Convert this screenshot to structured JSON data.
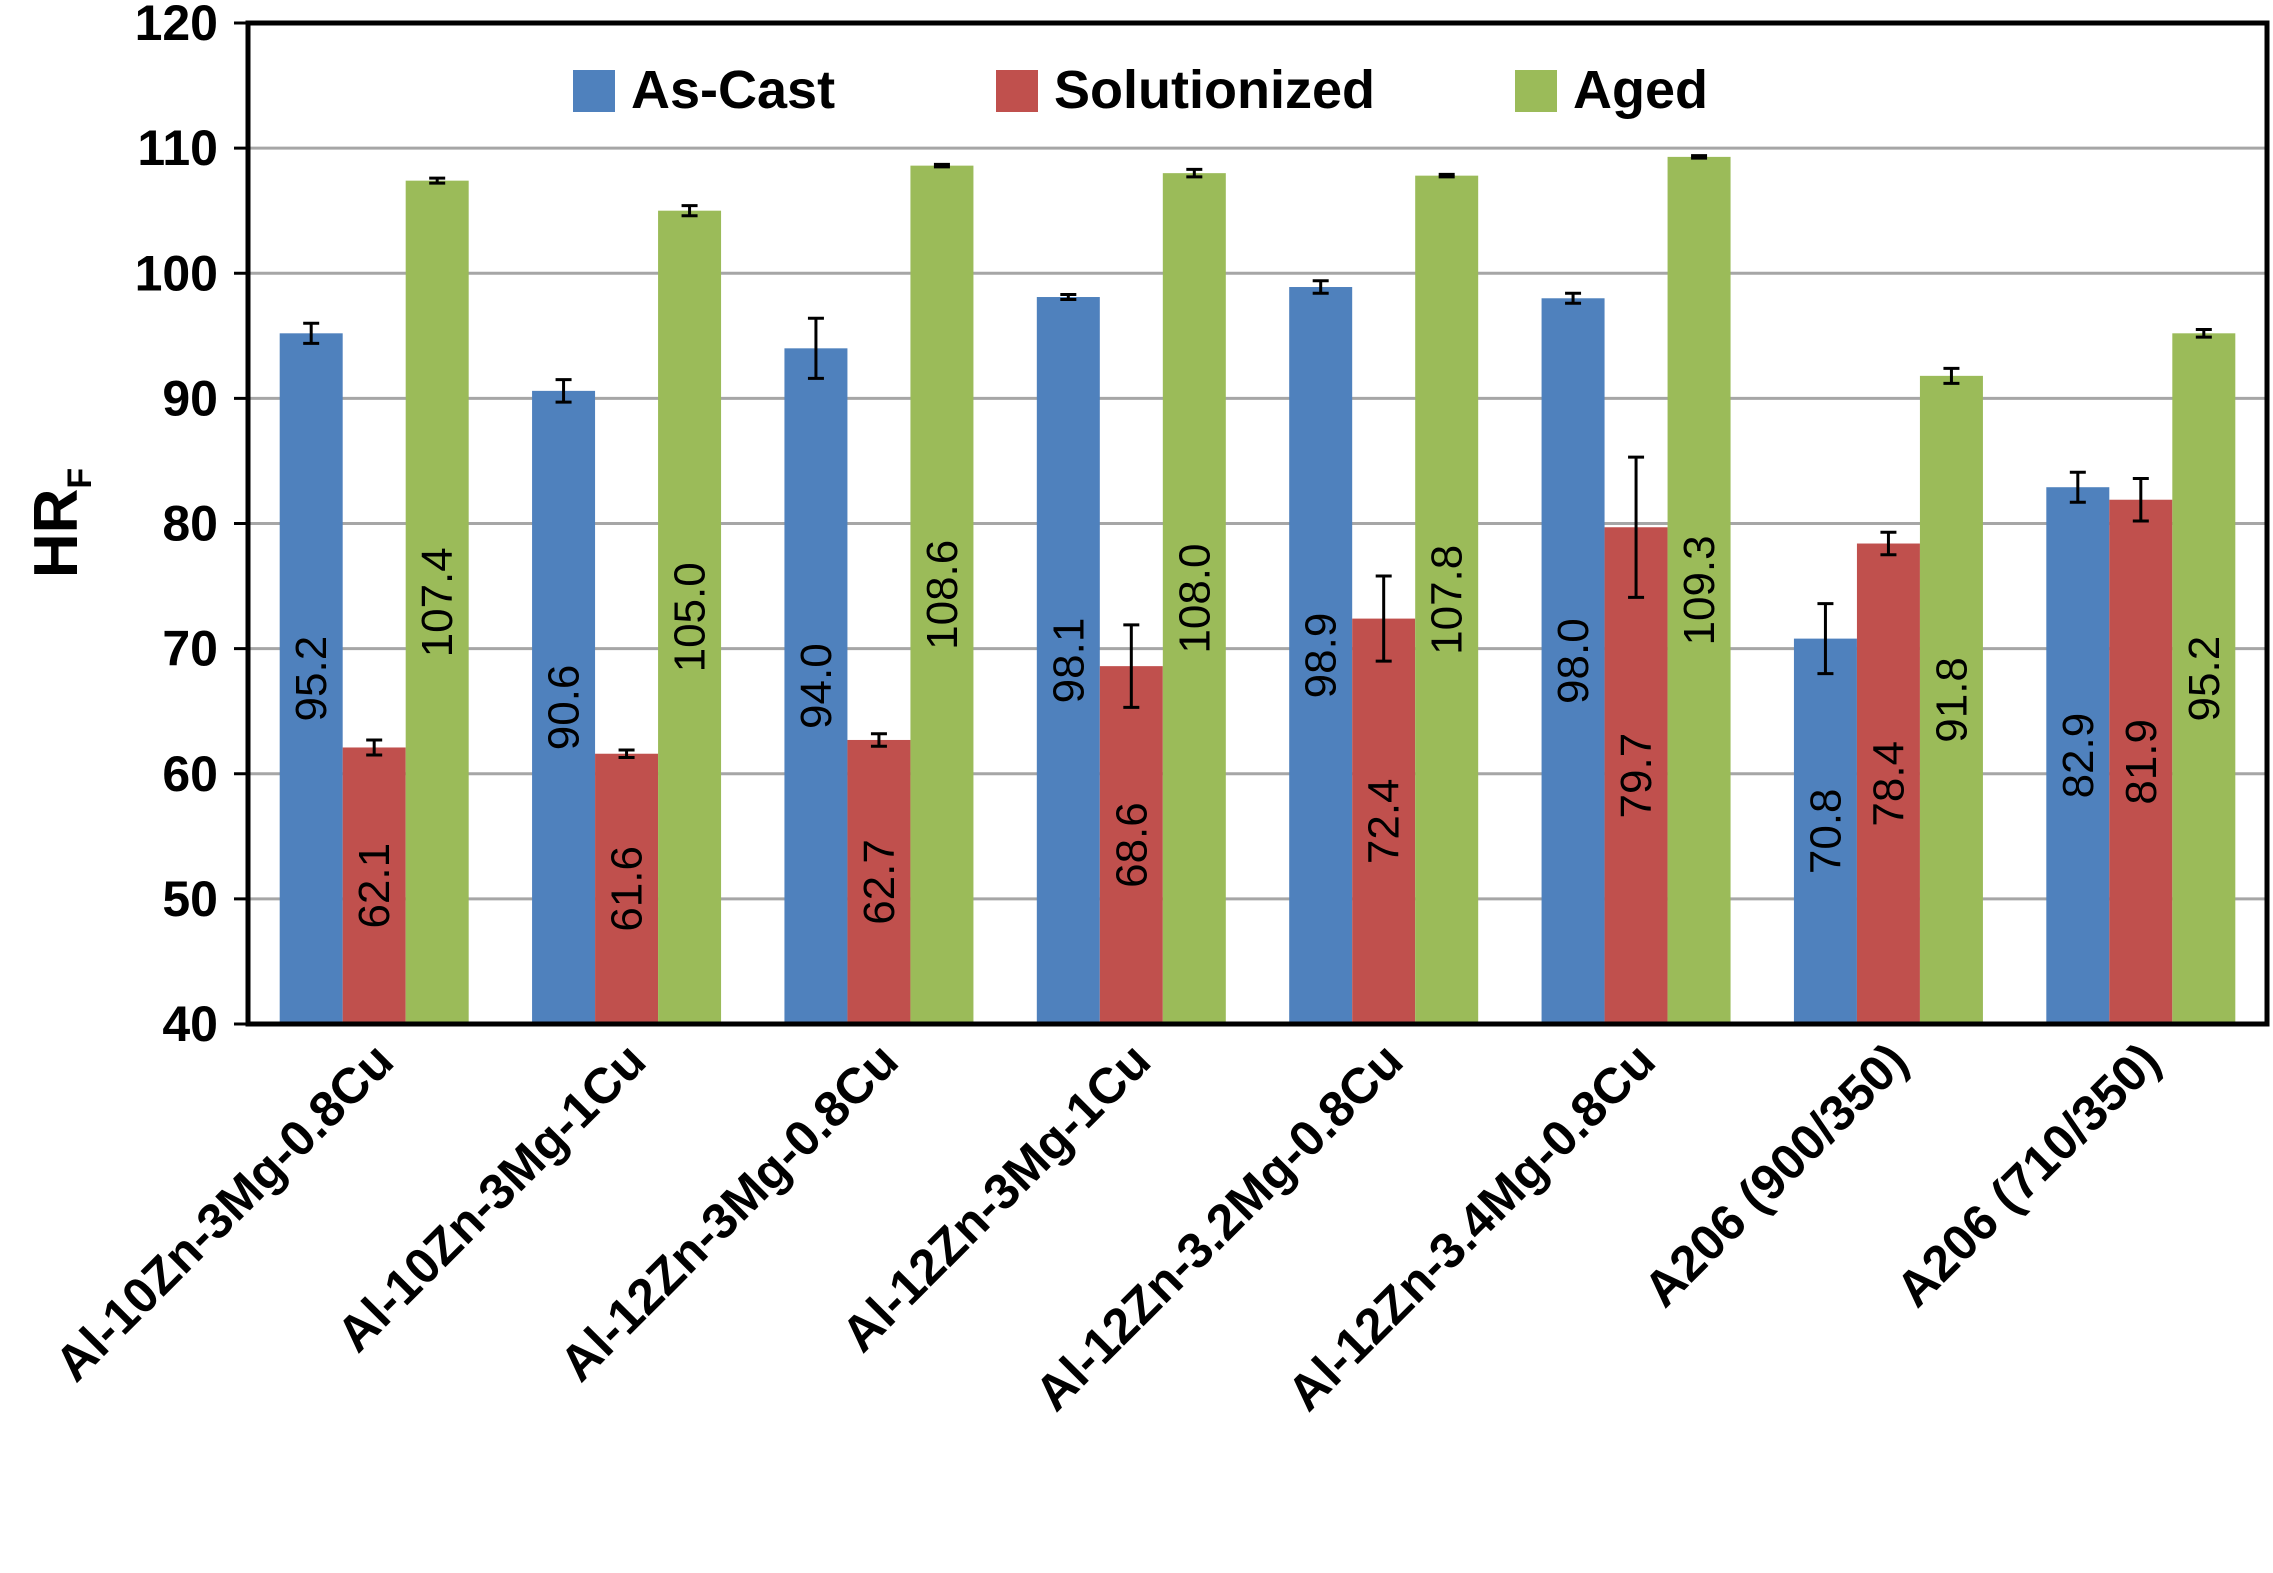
{
  "chart_data": {
    "type": "bar",
    "title": "",
    "xlabel": "",
    "ylabel": "HR",
    "ylabel_subscript": "F",
    "ylim": [
      40,
      120
    ],
    "yticks": [
      40,
      50,
      60,
      70,
      80,
      90,
      100,
      110,
      120
    ],
    "grid": true,
    "legend_position": "top",
    "categories": [
      "Al-10Zn-3Mg-0.8Cu",
      "Al-10Zn-3Mg-1Cu",
      "Al-12Zn-3Mg-0.8Cu",
      "Al-12Zn-3Mg-1Cu",
      "Al-12Zn-3.2Mg-0.8Cu",
      "Al-12Zn-3.4Mg-0.8Cu",
      "A206 (900/350)",
      "A206 (710/350)"
    ],
    "series": [
      {
        "name": "As-Cast",
        "color": "#4f81bd",
        "values": [
          95.2,
          90.6,
          94.0,
          98.1,
          98.9,
          98.0,
          70.8,
          82.9
        ],
        "errors": [
          0.8,
          0.9,
          2.4,
          0.2,
          0.5,
          0.4,
          2.8,
          1.2
        ],
        "labels": [
          "95.2",
          "90.6",
          "94.0",
          "98.1",
          "98.9",
          "98.0",
          "70.8",
          "82.9"
        ]
      },
      {
        "name": "Solutionized",
        "color": "#c0504d",
        "values": [
          62.1,
          61.6,
          62.7,
          68.6,
          72.4,
          79.7,
          78.4,
          81.9
        ],
        "errors": [
          0.6,
          0.3,
          0.5,
          3.3,
          3.4,
          5.6,
          0.9,
          1.7
        ],
        "labels": [
          "62.1",
          "61.6",
          "62.7",
          "68.6",
          "72.4",
          "79.7",
          "78.4",
          "81.9"
        ]
      },
      {
        "name": "Aged",
        "color": "#9bbb59",
        "values": [
          107.4,
          105.0,
          108.6,
          108.0,
          107.8,
          109.3,
          91.8,
          95.2
        ],
        "errors": [
          0.2,
          0.4,
          0.1,
          0.3,
          0.1,
          0.1,
          0.6,
          0.3
        ],
        "labels": [
          "107.4",
          "105.0",
          "108.6",
          "108.0",
          "107.8",
          "109.3",
          "91.8",
          "95.2"
        ]
      }
    ]
  }
}
